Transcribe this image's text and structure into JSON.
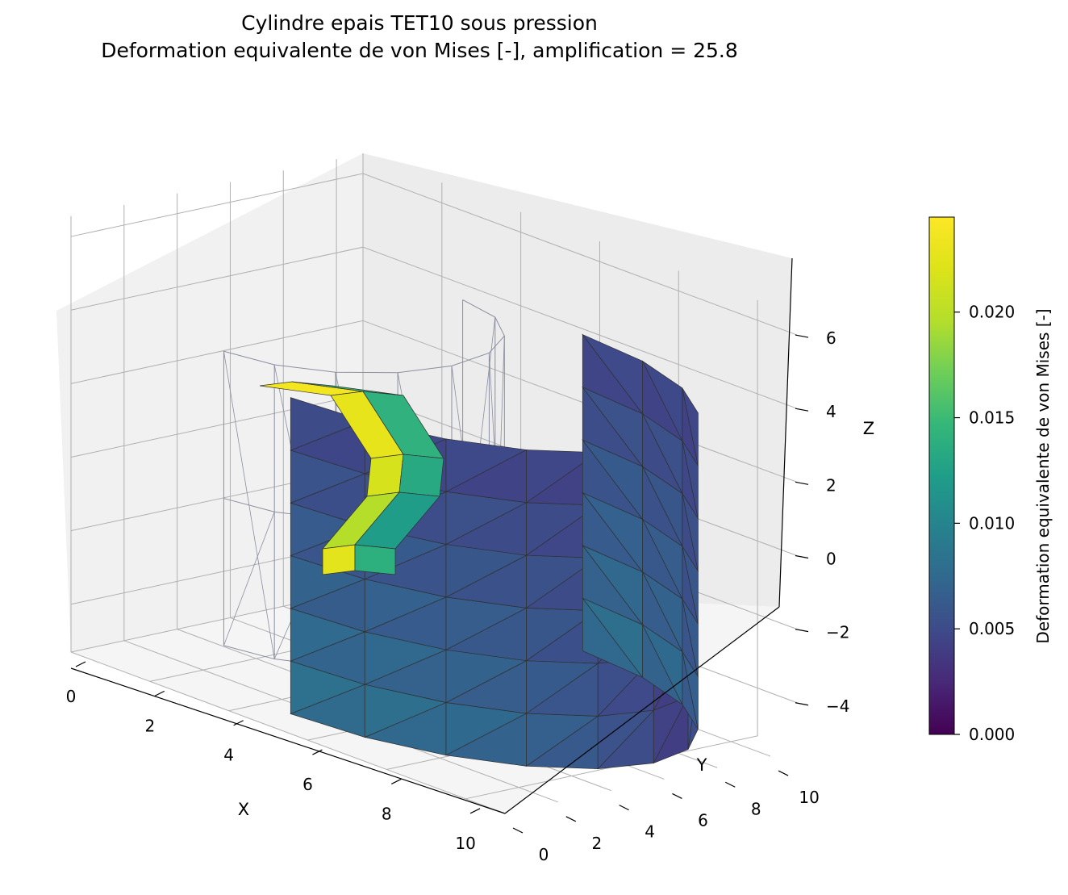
{
  "chart_data": {
    "type": "surface3d",
    "title": "Cylindre epais TET10 sous pression",
    "subtitle": "Deformation equivalente de von Mises [-], amplification = 25.8",
    "xlabel": "X",
    "ylabel": "Y",
    "zlabel": "Z",
    "x_ticks": [
      "0",
      "2",
      "4",
      "6",
      "8",
      "10"
    ],
    "y_ticks": [
      "0",
      "2",
      "4",
      "6",
      "8",
      "10"
    ],
    "z_ticks": [
      "−4",
      "−2",
      "0",
      "2",
      "4",
      "6"
    ],
    "xlim": [
      0,
      11
    ],
    "ylim": [
      0,
      11
    ],
    "zlim": [
      -5,
      6.5
    ],
    "grid": true,
    "mesh": {
      "inner_radius": 5,
      "outer_radius": 10,
      "angle_range_deg": [
        0,
        180
      ],
      "deformed_view": "colored surface",
      "undeformed_view": "wireframe"
    },
    "colorbar": {
      "label": "Deformation equivalente de von Mises [-]",
      "colormap": "viridis",
      "min": 0.0,
      "max": 0.0245,
      "ticks": [
        "0.000",
        "0.005",
        "0.010",
        "0.015",
        "0.020"
      ],
      "tick_values": [
        0.0,
        0.005,
        0.01,
        0.015,
        0.02
      ]
    },
    "colors": {
      "pane_back": "#f2f2f2",
      "pane_floor": "#f4f4f4",
      "pane_side": "#eaeaea",
      "grid": "#b0b0b0",
      "wire": "#8a8fa0",
      "edge": "#303030"
    }
  }
}
